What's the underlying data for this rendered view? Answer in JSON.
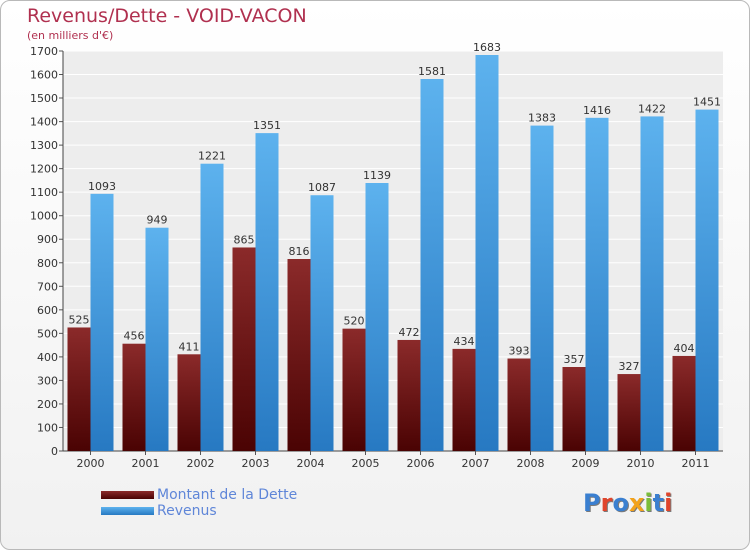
{
  "title": "Revenus/Dette - VOID-VACON",
  "subtitle": "(en milliers d'€)",
  "colors": {
    "dette": "#6b1010",
    "revenus": "#3a95dd",
    "title": "#b0304f"
  },
  "chart_data": {
    "type": "bar",
    "title": "Revenus/Dette - VOID-VACON",
    "subtitle": "(en milliers d'€)",
    "xlabel": "",
    "ylabel": "",
    "categories": [
      "2000",
      "2001",
      "2002",
      "2003",
      "2004",
      "2005",
      "2006",
      "2007",
      "2008",
      "2009",
      "2010",
      "2011"
    ],
    "series": [
      {
        "name": "Montant de la Dette",
        "values": [
          525,
          456,
          411,
          865,
          816,
          520,
          472,
          434,
          393,
          357,
          327,
          404
        ]
      },
      {
        "name": "Revenus",
        "values": [
          1093,
          949,
          1221,
          1351,
          1087,
          1139,
          1581,
          1683,
          1383,
          1416,
          1422,
          1451
        ]
      }
    ],
    "ylim": [
      0,
      1700
    ],
    "yticks": [
      0,
      100,
      200,
      300,
      400,
      500,
      600,
      700,
      800,
      900,
      1000,
      1100,
      1200,
      1300,
      1400,
      1500,
      1600,
      1700
    ],
    "grid": true,
    "legend": "bottom-left"
  },
  "legend": [
    {
      "label": "Montant de la Dette"
    },
    {
      "label": "Revenus"
    }
  ],
  "logo": {
    "text": "Proxiti"
  }
}
